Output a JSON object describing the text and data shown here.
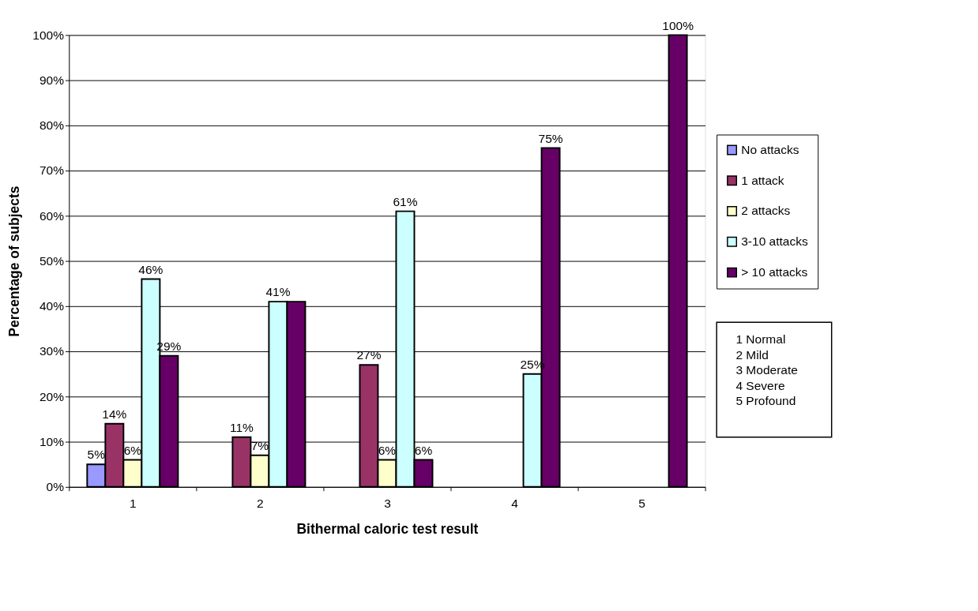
{
  "chart_data": {
    "type": "bar",
    "xlabel": "Bithermal caloric test result",
    "ylabel": "Percentage of subjects",
    "categories": [
      "1",
      "2",
      "3",
      "4",
      "5"
    ],
    "series": [
      {
        "name": "No attacks",
        "color": "#9999ff",
        "values": [
          5,
          null,
          null,
          null,
          null
        ],
        "value_labels": [
          "5%",
          null,
          null,
          null,
          null
        ]
      },
      {
        "name": "1 attack",
        "color": "#993366",
        "values": [
          14,
          11,
          27,
          null,
          null
        ],
        "value_labels": [
          "14%",
          "11%",
          "27%",
          null,
          null
        ]
      },
      {
        "name": "2 attacks",
        "color": "#ffffcc",
        "values": [
          6,
          7,
          6,
          null,
          null
        ],
        "value_labels": [
          "6%",
          "7%",
          "6%",
          null,
          null
        ]
      },
      {
        "name": "3-10 attacks",
        "color": "#ccffff",
        "values": [
          46,
          41,
          61,
          25,
          null
        ],
        "value_labels": [
          "46%",
          "41%",
          "61%",
          "25%",
          null
        ]
      },
      {
        "name": "> 10 attacks",
        "color": "#660066",
        "values": [
          29,
          41,
          6,
          75,
          100
        ],
        "value_labels": [
          "29%",
          null,
          "6%",
          "75%",
          "100%"
        ]
      }
    ],
    "ylim": [
      0,
      100
    ],
    "yticks": [
      {
        "value": 0,
        "label": "0%"
      },
      {
        "value": 10,
        "label": "10%"
      },
      {
        "value": 20,
        "label": "20%"
      },
      {
        "value": 30,
        "label": "30%"
      },
      {
        "value": 40,
        "label": "40%"
      },
      {
        "value": 50,
        "label": "50%"
      },
      {
        "value": 60,
        "label": "60%"
      },
      {
        "value": 70,
        "label": "70%"
      },
      {
        "value": 80,
        "label": "80%"
      },
      {
        "value": 90,
        "label": "90%"
      },
      {
        "value": 100,
        "label": "100%"
      }
    ],
    "grid": "y",
    "legend": "right",
    "annotations": [
      "1 Normal\n2 Mild\n3 Moderate\n4 Severe\n5 Profound"
    ]
  }
}
